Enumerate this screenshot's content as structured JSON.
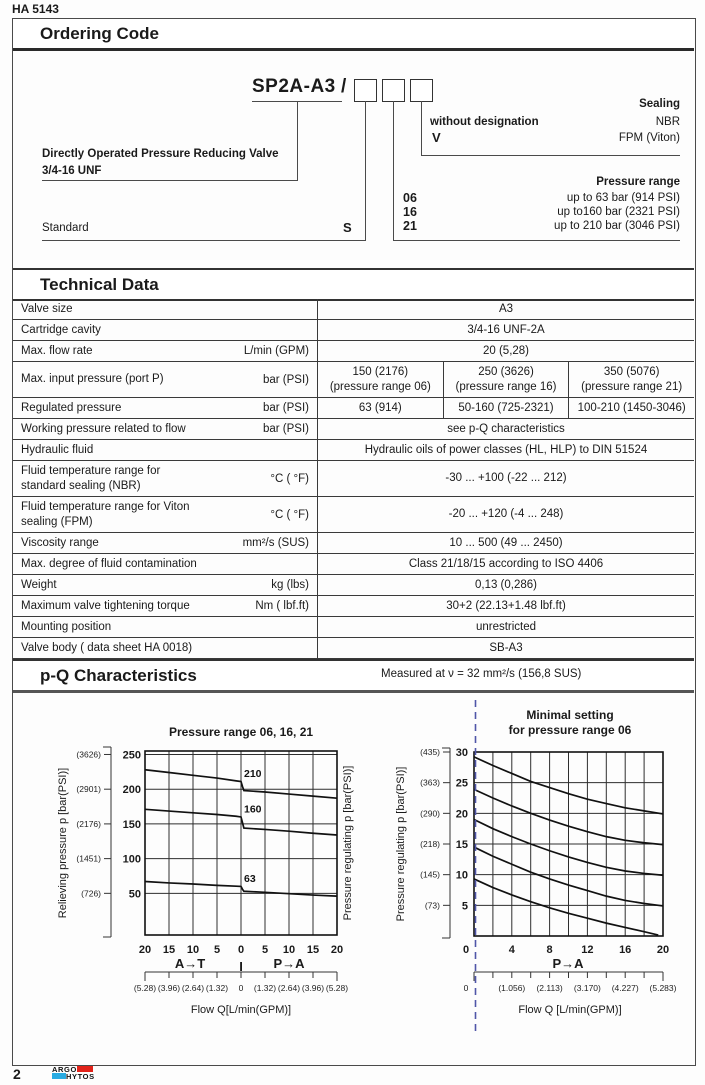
{
  "page": {
    "doc_number": "HA 5143",
    "page_number": "2",
    "logo_top": "ARGO",
    "logo_bottom": "HYTOS",
    "colors": {
      "logo_red": "#e2231a",
      "logo_blue": "#29abe2",
      "dashed_line": "#5056a8"
    }
  },
  "ordering": {
    "section_title": "Ordering Code",
    "code": "SP2A-A3",
    "slash": "/",
    "description_line1": "Directly Operated Pressure Reducing Valve",
    "description_line2": "3/4-16 UNF",
    "standard_label": "Standard",
    "standard_code": "S",
    "sealing": {
      "heading": "Sealing",
      "rows": [
        {
          "code": "without designation",
          "value": "NBR"
        },
        {
          "code": "V",
          "value": "FPM (Viton)"
        }
      ]
    },
    "pressure_range": {
      "heading": "Pressure range",
      "rows": [
        {
          "code": "06",
          "value": "up to 63 bar (914 PSI)"
        },
        {
          "code": "16",
          "value": "up to160 bar (2321 PSI)"
        },
        {
          "code": "21",
          "value": "up to 210 bar (3046 PSI)"
        }
      ]
    }
  },
  "technical": {
    "section_title": "Technical Data",
    "rows": [
      {
        "label": "Valve size",
        "unit": "",
        "value": "A3"
      },
      {
        "label": "Cartridge cavity",
        "unit": "",
        "value": "3/4-16 UNF-2A"
      },
      {
        "label": "Max. flow rate",
        "unit": "L/min (GPM)",
        "value": "20 (5,28)"
      },
      {
        "label": "Max. input pressure (port P)",
        "unit": "bar (PSI)",
        "cells": [
          [
            "150 (2176)",
            "(pressure range 06)"
          ],
          [
            "250 (3626)",
            "(pressure range 16)"
          ],
          [
            "350 (5076)",
            "(pressure range 21)"
          ]
        ]
      },
      {
        "label": "Regulated pressure",
        "unit": "bar (PSI)",
        "cells3": [
          "63 (914)",
          "50-160 (725-2321)",
          "100-210 (1450-3046)"
        ]
      },
      {
        "label": "Working pressure related to flow",
        "unit": "bar (PSI)",
        "value": "see p-Q characteristics"
      },
      {
        "label": "Hydraulic fluid",
        "unit": "",
        "value": "Hydraulic oils of power classes (HL, HLP) to DIN 51524"
      },
      {
        "label": "Fluid temperature range for standard sealing (NBR)",
        "unit": "°C ( °F)",
        "value": "-30 ... +100 (-22 ... 212)"
      },
      {
        "label": "Fluid temperature range for Viton sealing (FPM)",
        "unit": "°C ( °F)",
        "value": "-20 ... +120 (-4 ... 248)"
      },
      {
        "label": "Viscosity range",
        "unit": "mm²/s (SUS)",
        "value": "10 ... 500 (49 ... 2450)"
      },
      {
        "label": "Max. degree of fluid contamination",
        "unit": "",
        "value": "Class 21/18/15 according to ISO 4406"
      },
      {
        "label": "Weight",
        "unit": "kg (lbs)",
        "value": "0,13 (0,286)"
      },
      {
        "label": "Maximum valve tightening torque",
        "unit": "Nm ( lbf.ft)",
        "value": "30+2 (22.13+1.48 lbf.ft)"
      },
      {
        "label": "Mounting position",
        "unit": "",
        "value": "unrestricted"
      },
      {
        "label": "Valve body  ( data sheet HA 0018)",
        "unit": "",
        "value": "SB-A3"
      }
    ]
  },
  "pq": {
    "section_title": "p-Q Characteristics",
    "subtitle": "Measured at ν = 32 mm²/s  (156,8 SUS)"
  },
  "chart_data": [
    {
      "type": "line",
      "title": "Pressure range 06, 16, 21",
      "ylabel_left": "Relieving pressure p [bar(PSI)]",
      "ylabel_right": "Pressure regulating p [bar(PSI)]",
      "xlabel": "Flow Q[L/min(GPM)]",
      "x_section_left": "A→T",
      "x_section_divider": "I",
      "x_section_right": "P→A",
      "xlim": [
        -20,
        20
      ],
      "ylim": [
        -10,
        255
      ],
      "grid": true,
      "x_tick_values": [
        -20,
        -15,
        -10,
        -5,
        0,
        5,
        10,
        15,
        20
      ],
      "x_tick_labels": [
        "20",
        "15",
        "10",
        "5",
        "0",
        "5",
        "10",
        "15",
        "20"
      ],
      "y_tick_values": [
        50,
        100,
        150,
        200,
        250
      ],
      "y_tick_labels": [
        "50",
        "100",
        "150",
        "200",
        "250"
      ],
      "y_psi_labels": [
        "(726)",
        "(1451)",
        "(2176)",
        "(2901)",
        "(3626)"
      ],
      "gpm_labels": [
        "(5.28)",
        "(3.96)",
        "(2.64)",
        "(1.32)",
        "0",
        "(1.32)",
        "(2.64)",
        "(3.96)",
        "(5.28)"
      ],
      "series": [
        {
          "name": "210",
          "label_at": 212,
          "points": [
            [
              -20,
              228
            ],
            [
              -15,
              224
            ],
            [
              -10,
              220
            ],
            [
              -5,
              216
            ],
            [
              -1,
              212
            ],
            [
              0,
              211
            ],
            [
              0.3,
              204
            ],
            [
              0.6,
              198
            ],
            [
              5,
              196
            ],
            [
              10,
              193
            ],
            [
              15,
              190
            ],
            [
              20,
              187
            ]
          ]
        },
        {
          "name": "160",
          "label_at": 161,
          "points": [
            [
              -20,
              171
            ],
            [
              -15,
              168.5
            ],
            [
              -10,
              166
            ],
            [
              -5,
              163.5
            ],
            [
              -1,
              161
            ],
            [
              0,
              160
            ],
            [
              0.3,
              152
            ],
            [
              0.6,
              144
            ],
            [
              5,
              142
            ],
            [
              10,
              139.5
            ],
            [
              15,
              136.5
            ],
            [
              20,
              134
            ]
          ]
        },
        {
          "name": "63",
          "label_at": 60.5,
          "points": [
            [
              -20,
              67
            ],
            [
              -15,
              65
            ],
            [
              -10,
              63.5
            ],
            [
              -5,
              61.5
            ],
            [
              -1,
              60.3
            ],
            [
              0,
              60
            ],
            [
              0.3,
              56
            ],
            [
              0.6,
              53
            ],
            [
              5,
              51.5
            ],
            [
              10,
              49.5
            ],
            [
              15,
              47.5
            ],
            [
              20,
              46
            ]
          ]
        }
      ]
    },
    {
      "type": "line",
      "title": "Minimal setting",
      "title_line2": "for pressure range 06",
      "ylabel": "Pressure regulating p [bar(PSI)]",
      "xlabel": "Flow Q [L/min(GPM)]",
      "x_section": "P→A",
      "xlim": [
        0,
        20
      ],
      "ylim": [
        0,
        30
      ],
      "grid": true,
      "x_grid_step": 2,
      "x_tick_values": [
        0,
        4,
        8,
        12,
        16,
        20
      ],
      "x_tick_labels": [
        "0",
        "4",
        "8",
        "12",
        "16",
        "20"
      ],
      "y_tick_values": [
        5,
        10,
        15,
        20,
        25,
        30
      ],
      "y_tick_labels": [
        "5",
        "10",
        "15",
        "20",
        "25",
        "30"
      ],
      "y_psi_labels": [
        "(73)",
        "(145)",
        "(218)",
        "(290)",
        "(363)",
        "(435)"
      ],
      "gpm_values": [
        0,
        4,
        8,
        12,
        16,
        20
      ],
      "gpm_labels": [
        "0",
        "(1.056)",
        "(2.113)",
        "(3.170)",
        "(4.227)",
        "(5.283)"
      ],
      "series": [
        {
          "name": "curve-1",
          "points": [
            [
              0,
              29.2
            ],
            [
              2,
              27.8
            ],
            [
              4,
              26.5
            ],
            [
              6,
              25.2
            ],
            [
              8,
              24.2
            ],
            [
              10,
              23.2
            ],
            [
              12,
              22.3
            ],
            [
              14,
              21.6
            ],
            [
              16,
              20.9
            ],
            [
              18,
              20.4
            ],
            [
              20,
              19.9
            ]
          ]
        },
        {
          "name": "curve-2",
          "points": [
            [
              0,
              23.9
            ],
            [
              2,
              22.5
            ],
            [
              4,
              21.2
            ],
            [
              6,
              20.0
            ],
            [
              8,
              18.9
            ],
            [
              10,
              17.9
            ],
            [
              12,
              17.0
            ],
            [
              14,
              16.2
            ],
            [
              16,
              15.6
            ],
            [
              18,
              15.2
            ],
            [
              20,
              14.9
            ]
          ]
        },
        {
          "name": "curve-3",
          "points": [
            [
              0,
              19.0
            ],
            [
              2,
              17.5
            ],
            [
              4,
              16.2
            ],
            [
              6,
              15.0
            ],
            [
              8,
              13.9
            ],
            [
              10,
              12.9
            ],
            [
              12,
              12.0
            ],
            [
              14,
              11.2
            ],
            [
              16,
              10.6
            ],
            [
              18,
              10.2
            ],
            [
              20,
              9.9
            ]
          ]
        },
        {
          "name": "curve-4",
          "points": [
            [
              0,
              14.5
            ],
            [
              2,
              13.0
            ],
            [
              4,
              11.7
            ],
            [
              6,
              10.4
            ],
            [
              8,
              9.3
            ],
            [
              10,
              8.3
            ],
            [
              12,
              7.4
            ],
            [
              14,
              6.5
            ],
            [
              16,
              5.8
            ],
            [
              18,
              5.3
            ],
            [
              20,
              4.9
            ]
          ]
        },
        {
          "name": "curve-5",
          "points": [
            [
              0,
              9.3
            ],
            [
              2,
              7.9
            ],
            [
              4,
              6.7
            ],
            [
              6,
              5.6
            ],
            [
              8,
              4.6
            ],
            [
              10,
              3.7
            ],
            [
              12,
              2.9
            ],
            [
              14,
              2.1
            ],
            [
              16,
              1.4
            ],
            [
              18,
              0.7
            ],
            [
              19.5,
              0.15
            ]
          ]
        }
      ]
    }
  ]
}
